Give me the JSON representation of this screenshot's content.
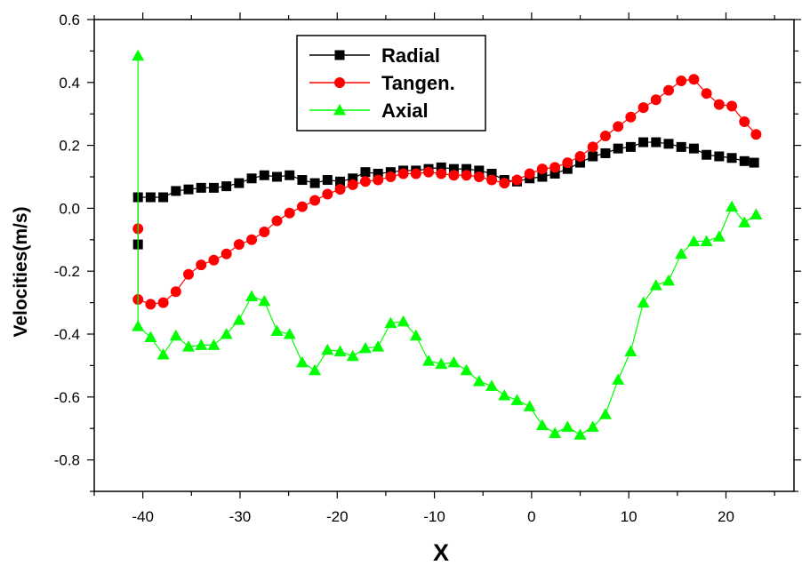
{
  "chart_data": {
    "type": "line",
    "xlabel": "X",
    "ylabel": "Velocities(m/s)",
    "xlim": [
      -45,
      27
    ],
    "ylim": [
      -0.9,
      0.6
    ],
    "xticks": [
      -40,
      -30,
      -20,
      -10,
      0,
      10,
      20
    ],
    "yticks": [
      -0.8,
      -0.6,
      -0.4,
      -0.2,
      0.0,
      0.2,
      0.4,
      0.6
    ],
    "xtick_labels": [
      "-40",
      "-30",
      "-20",
      "-10",
      "0",
      "10",
      "20"
    ],
    "ytick_labels": [
      "-0.8",
      "-0.6",
      "-0.4",
      "-0.2",
      "0.0",
      "0.2",
      "0.4",
      "0.6"
    ],
    "grid": false,
    "legend_position": "top-center",
    "series": [
      {
        "name": "Radial",
        "color": "#000000",
        "marker": "square",
        "x": [
          -40.5,
          -40.5,
          -39.2,
          -37.9,
          -36.6,
          -35.3,
          -34.0,
          -32.7,
          -31.4,
          -30.1,
          -28.8,
          -27.5,
          -26.2,
          -24.9,
          -23.6,
          -22.3,
          -21.0,
          -19.7,
          -18.4,
          -17.1,
          -15.8,
          -14.5,
          -13.2,
          -11.9,
          -10.6,
          -9.3,
          -8.0,
          -6.7,
          -5.4,
          -4.1,
          -2.8,
          -1.5,
          -0.2,
          1.1,
          2.4,
          3.7,
          5.0,
          6.3,
          7.6,
          8.9,
          10.2,
          11.5,
          12.8,
          14.1,
          15.4,
          16.7,
          18.0,
          19.3,
          20.6,
          21.9,
          22.9
        ],
        "values": [
          -0.115,
          0.035,
          0.035,
          0.035,
          0.055,
          0.06,
          0.065,
          0.065,
          0.07,
          0.08,
          0.095,
          0.105,
          0.1,
          0.105,
          0.09,
          0.08,
          0.09,
          0.085,
          0.095,
          0.115,
          0.11,
          0.115,
          0.12,
          0.12,
          0.125,
          0.13,
          0.125,
          0.125,
          0.12,
          0.11,
          0.09,
          0.085,
          0.095,
          0.1,
          0.11,
          0.125,
          0.145,
          0.165,
          0.175,
          0.19,
          0.195,
          0.21,
          0.21,
          0.205,
          0.195,
          0.19,
          0.17,
          0.165,
          0.16,
          0.15,
          0.145
        ]
      },
      {
        "name": "Tangen.",
        "color": "#ff0000",
        "marker": "circle",
        "x": [
          -40.5,
          -40.5,
          -39.2,
          -37.9,
          -36.6,
          -35.3,
          -34.0,
          -32.7,
          -31.4,
          -30.1,
          -28.8,
          -27.5,
          -26.2,
          -24.9,
          -23.6,
          -22.3,
          -21.0,
          -19.7,
          -18.4,
          -17.1,
          -15.8,
          -14.5,
          -13.2,
          -11.9,
          -10.6,
          -9.3,
          -8.0,
          -6.7,
          -5.4,
          -4.1,
          -2.8,
          -1.5,
          -0.2,
          1.1,
          2.4,
          3.7,
          5.0,
          6.3,
          7.6,
          8.9,
          10.2,
          11.5,
          12.8,
          14.1,
          15.4,
          16.7,
          18.0,
          19.3,
          20.6,
          21.9,
          23.1
        ],
        "values": [
          -0.065,
          -0.29,
          -0.305,
          -0.3,
          -0.265,
          -0.21,
          -0.18,
          -0.165,
          -0.145,
          -0.115,
          -0.1,
          -0.075,
          -0.04,
          -0.015,
          0.005,
          0.025,
          0.045,
          0.06,
          0.075,
          0.085,
          0.09,
          0.1,
          0.11,
          0.11,
          0.115,
          0.11,
          0.105,
          0.105,
          0.1,
          0.09,
          0.08,
          0.09,
          0.11,
          0.125,
          0.13,
          0.145,
          0.165,
          0.195,
          0.23,
          0.26,
          0.29,
          0.32,
          0.345,
          0.375,
          0.405,
          0.41,
          0.365,
          0.33,
          0.325,
          0.275,
          0.235
        ]
      },
      {
        "name": "Axial",
        "color": "#00ff00",
        "marker": "triangle",
        "x": [
          -40.5,
          -40.5,
          -39.2,
          -37.9,
          -36.6,
          -35.3,
          -34.0,
          -32.7,
          -31.4,
          -30.1,
          -28.8,
          -27.5,
          -26.2,
          -24.9,
          -23.6,
          -22.3,
          -21.0,
          -19.7,
          -18.4,
          -17.1,
          -15.8,
          -14.5,
          -13.2,
          -11.9,
          -10.6,
          -9.3,
          -8.0,
          -6.7,
          -5.4,
          -4.1,
          -2.8,
          -1.5,
          -0.2,
          1.1,
          2.4,
          3.7,
          5.0,
          6.3,
          7.6,
          8.9,
          10.2,
          11.5,
          12.8,
          14.1,
          15.4,
          16.7,
          18.0,
          19.3,
          20.6,
          21.9,
          23.1
        ],
        "values": [
          0.485,
          -0.375,
          -0.41,
          -0.465,
          -0.405,
          -0.44,
          -0.435,
          -0.435,
          -0.4,
          -0.355,
          -0.28,
          -0.295,
          -0.39,
          -0.4,
          -0.49,
          -0.515,
          -0.45,
          -0.455,
          -0.47,
          -0.445,
          -0.44,
          -0.365,
          -0.36,
          -0.405,
          -0.485,
          -0.495,
          -0.49,
          -0.515,
          -0.55,
          -0.565,
          -0.595,
          -0.61,
          -0.63,
          -0.69,
          -0.715,
          -0.695,
          -0.72,
          -0.695,
          -0.655,
          -0.545,
          -0.455,
          -0.3,
          -0.245,
          -0.23,
          -0.145,
          -0.105,
          -0.105,
          -0.09,
          0.005,
          -0.045,
          -0.02
        ]
      }
    ]
  }
}
